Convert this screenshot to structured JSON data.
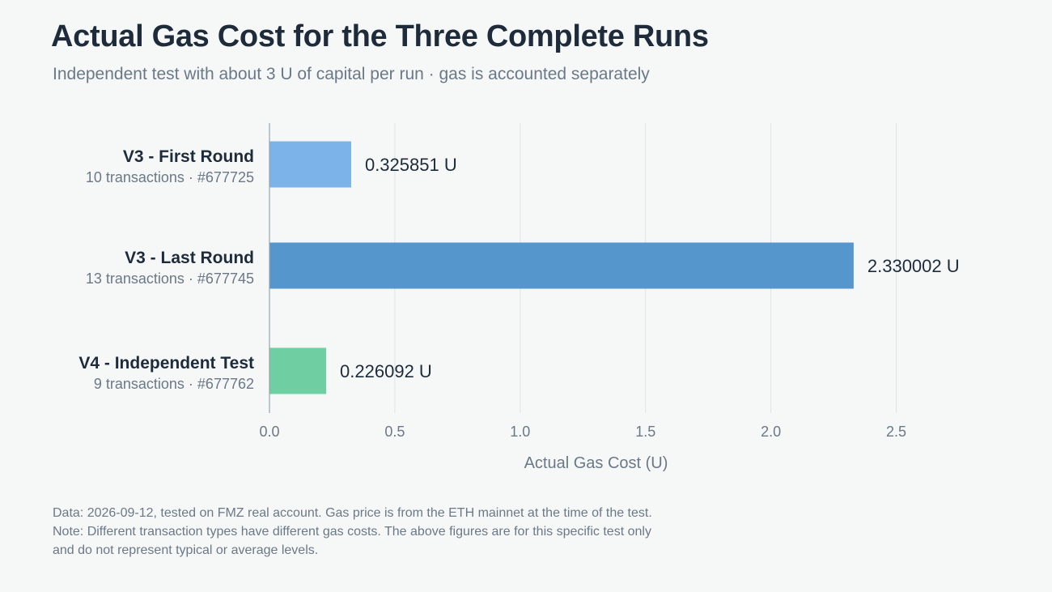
{
  "header": {
    "title": "Actual Gas Cost for the Three Complete Runs",
    "subtitle": "Independent test with about 3 U of capital per run · gas is accounted separately"
  },
  "chart_data": {
    "type": "bar",
    "orientation": "horizontal",
    "xlabel": "Actual Gas Cost (U)",
    "xlim": [
      0,
      2.75
    ],
    "xticks": [
      0.0,
      0.5,
      1.0,
      1.5,
      2.0,
      2.5
    ],
    "xtick_labels": [
      "0.0",
      "0.5",
      "1.0",
      "1.5",
      "2.0",
      "2.5"
    ],
    "grid": true,
    "bars": [
      {
        "category": "V3 - First Round",
        "detail": "10 transactions · #677725",
        "value": 0.325851,
        "value_label": "0.325851 U",
        "color": "#7cb4ea"
      },
      {
        "category": "V3 - Last Round",
        "detail": "13 transactions · #677745",
        "value": 2.330002,
        "value_label": "2.330002 U",
        "color": "#5596cc"
      },
      {
        "category": "V4 - Independent Test",
        "detail": "9 transactions · #677762",
        "value": 0.226092,
        "value_label": "0.226092 U",
        "color": "#6fcfa2"
      }
    ]
  },
  "footer": {
    "lines": [
      "Data: 2026-09-12, tested on FMZ real account. Gas price is from the ETH mainnet at the time of the test.",
      "Note: Different transaction types have different gas costs. The above figures are for this specific test only",
      "and do not represent typical or average levels."
    ]
  }
}
